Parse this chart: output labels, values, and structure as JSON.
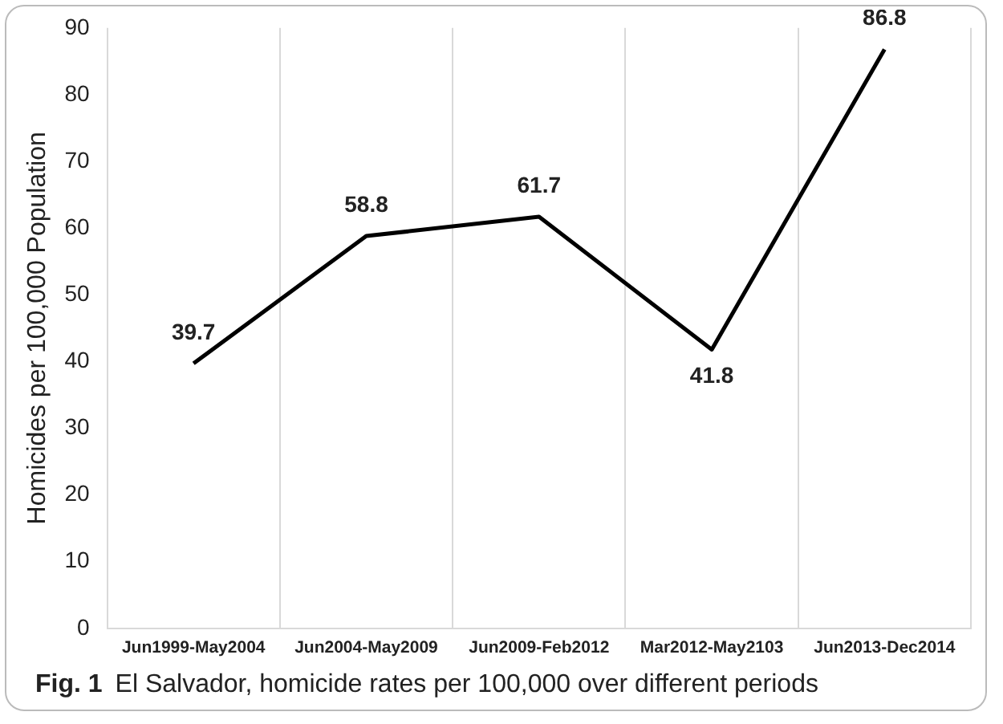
{
  "chart_data": {
    "type": "line",
    "ylabel": "Homicides per 100,000 Population",
    "categories": [
      "Jun1999-May2004",
      "Jun2004-May2009",
      "Jun2009-Feb2012",
      "Mar2012-May2103",
      "Jun2013-Dec2014"
    ],
    "series": [
      {
        "color": "#000000",
        "values": [
          39.7,
          58.8,
          61.7,
          41.8,
          86.8
        ]
      }
    ],
    "ylim": [
      0,
      90
    ],
    "yticks": [
      0,
      10,
      20,
      30,
      40,
      50,
      60,
      70,
      80,
      90
    ],
    "grid": "x",
    "data_labels": true,
    "legend": false,
    "marker": "none",
    "annotations": [
      "Fig. 1",
      "El Salvador, homicide rates per 100,000 over different periods"
    ]
  }
}
